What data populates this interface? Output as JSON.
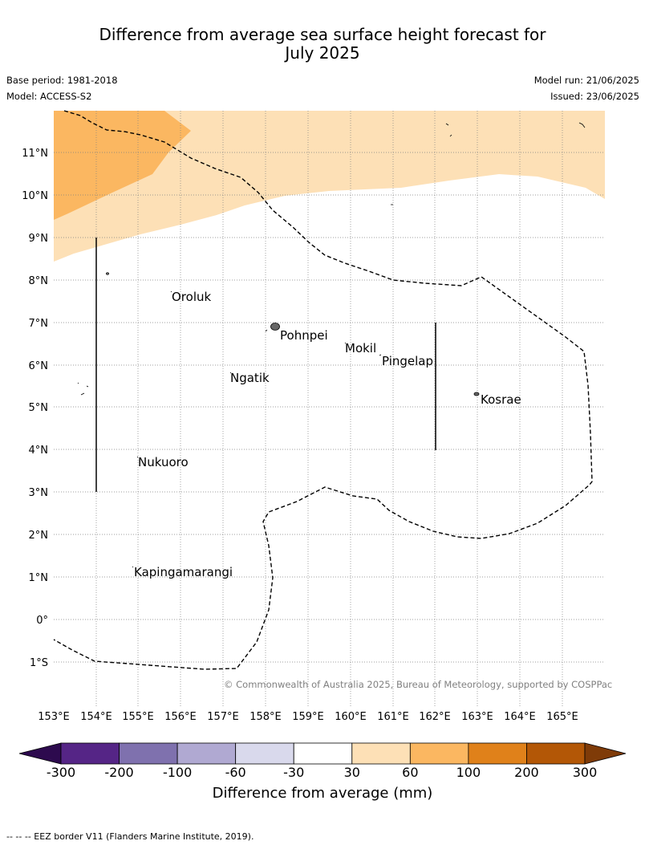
{
  "title_line1": "Difference from average sea surface height forecast for",
  "title_line2": "July 2025",
  "base_period": "Base period: 1981-2018",
  "model": "Model: ACCESS-S2",
  "model_run": "Model run: 21/06/2025",
  "issued": "Issued: 23/06/2025",
  "copyright": "© Commonwealth of Australia 2025, Bureau of Meteorology, supported by COSPPac",
  "lon_labels": [
    "153°E",
    "154°E",
    "155°E",
    "156°E",
    "157°E",
    "158°E",
    "159°E",
    "160°E",
    "161°E",
    "162°E",
    "163°E",
    "164°E",
    "165°E"
  ],
  "lat_labels": [
    "11°N",
    "10°N",
    "9°N",
    "8°N",
    "7°N",
    "6°N",
    "5°N",
    "4°N",
    "3°N",
    "2°N",
    "1°N",
    "0°",
    "1°S"
  ],
  "places": {
    "oroluk": "Oroluk",
    "pohnpei": "Pohnpei",
    "mokil": "Mokil",
    "pingelap": "Pingelap",
    "ngatik": "Ngatik",
    "kosrae": "Kosrae",
    "nukuoro": "Nukuoro",
    "kapingamarangi": "Kapingamarangi"
  },
  "colorbar": {
    "title": "Difference from average (mm)",
    "ticks": [
      "-300",
      "-200",
      "-100",
      "-60",
      "-30",
      "30",
      "60",
      "100",
      "200",
      "300"
    ],
    "colors": [
      "#552586",
      "#7f71ae",
      "#b0a9d2",
      "#d9d9ec",
      "#ffffff",
      "#fde0b6",
      "#fbb761",
      "#e0811a",
      "#b35706"
    ],
    "under_color": "#2d0a4e",
    "over_color": "#7f3b08"
  },
  "footer": "--  --  -- EEZ border V11 (Flanders Marine Institute, 2019)."
}
